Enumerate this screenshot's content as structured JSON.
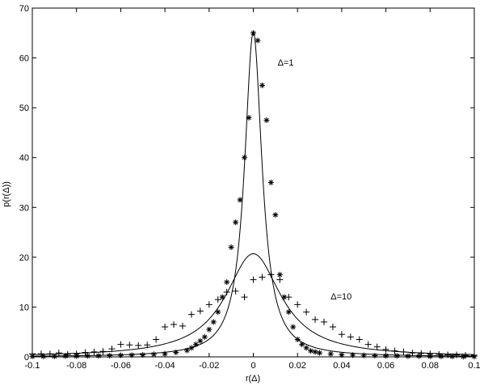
{
  "chart_data": {
    "type": "scatter",
    "title": "",
    "xlabel": "r(Δ)",
    "ylabel": "p(r(Δ))",
    "xlim": [
      -0.1,
      0.1
    ],
    "ylim": [
      0,
      70
    ],
    "x_ticks": [
      -0.1,
      -0.08,
      -0.06,
      -0.04,
      -0.02,
      0,
      0.02,
      0.04,
      0.06,
      0.08,
      0.1
    ],
    "x_tick_labels": [
      "-0.1",
      "-0.08",
      "-0.06",
      "-0.04",
      "-0.02",
      "0",
      "0.02",
      "0.04",
      "0.06",
      "0.08",
      "0.1"
    ],
    "y_ticks": [
      0,
      10,
      20,
      30,
      40,
      50,
      60,
      70
    ],
    "y_tick_labels": [
      "0",
      "10",
      "20",
      "30",
      "40",
      "50",
      "60",
      "70"
    ],
    "grid": false,
    "annotations": [
      {
        "text": "Δ=1",
        "x": 0.011,
        "y": 58.5
      },
      {
        "text": "Δ=10",
        "x": 0.035,
        "y": 11.5
      }
    ],
    "series": [
      {
        "marker": "asterisk",
        "x": [
          -0.1,
          -0.095,
          -0.09,
          -0.085,
          -0.08,
          -0.075,
          -0.07,
          -0.065,
          -0.06,
          -0.055,
          -0.05,
          -0.045,
          -0.04,
          -0.035,
          -0.03,
          -0.028,
          -0.026,
          -0.024,
          -0.022,
          -0.02,
          -0.018,
          -0.016,
          -0.014,
          -0.012,
          -0.01,
          -0.008,
          -0.006,
          -0.004,
          -0.002,
          0,
          0.002,
          0.004,
          0.006,
          0.008,
          0.01,
          0.012,
          0.014,
          0.016,
          0.018,
          0.02,
          0.022,
          0.024,
          0.026,
          0.028,
          0.03,
          0.035,
          0.04,
          0.045,
          0.05,
          0.055,
          0.06,
          0.065,
          0.07,
          0.075,
          0.08,
          0.085,
          0.09,
          0.095,
          0.1
        ],
        "y": [
          0.1,
          0.1,
          0.1,
          0.15,
          0.15,
          0.2,
          0.2,
          0.25,
          0.3,
          0.35,
          0.4,
          0.5,
          0.6,
          0.9,
          1.3,
          1.8,
          2.5,
          3.2,
          4.0,
          5.5,
          7.0,
          9.0,
          12.0,
          15.0,
          22.0,
          27.0,
          31.5,
          40.0,
          48.0,
          65.0,
          63.5,
          54.5,
          47.5,
          35.0,
          28.5,
          16.5,
          12.0,
          9.0,
          6.0,
          3.5,
          2.5,
          1.8,
          1.2,
          1.0,
          0.8,
          0.6,
          0.4,
          0.35,
          0.3,
          0.25,
          0.2,
          0.2,
          0.15,
          0.15,
          0.1,
          0.1,
          0.1,
          0.05,
          0.05
        ]
      },
      {
        "marker": "plus",
        "x": [
          -0.1,
          -0.096,
          -0.092,
          -0.088,
          -0.084,
          -0.08,
          -0.076,
          -0.072,
          -0.068,
          -0.064,
          -0.06,
          -0.056,
          -0.052,
          -0.048,
          -0.044,
          -0.04,
          -0.036,
          -0.032,
          -0.028,
          -0.024,
          -0.02,
          -0.016,
          -0.012,
          -0.008,
          -0.004,
          0,
          0.004,
          0.008,
          0.012,
          0.016,
          0.02,
          0.024,
          0.028,
          0.032,
          0.036,
          0.04,
          0.044,
          0.048,
          0.052,
          0.056,
          0.06,
          0.064,
          0.068,
          0.072,
          0.076,
          0.08,
          0.084,
          0.088,
          0.092,
          0.096,
          0.1
        ],
        "y": [
          0.6,
          0.6,
          0.6,
          0.8,
          0.5,
          0.6,
          0.9,
          1.0,
          1.1,
          1.6,
          2.5,
          2.4,
          2.3,
          2.4,
          3.5,
          6.0,
          6.5,
          6.2,
          8.5,
          9.2,
          10.5,
          11.5,
          13.0,
          13.2,
          12.0,
          15.5,
          16.0,
          16.5,
          15.5,
          12.0,
          10.5,
          9.0,
          7.5,
          7.0,
          6.0,
          4.5,
          4.0,
          3.5,
          2.5,
          2.0,
          1.5,
          1.2,
          1.0,
          0.8,
          0.7,
          0.6,
          0.5,
          0.4,
          0.4,
          0.3,
          0.3
        ]
      },
      {
        "marker": "none",
        "curve": "lorentzian",
        "peak": 65.2,
        "gamma": 0.0048
      },
      {
        "marker": "none",
        "curve": "lorentzian",
        "peak": 20.7,
        "gamma": 0.0152
      }
    ]
  }
}
